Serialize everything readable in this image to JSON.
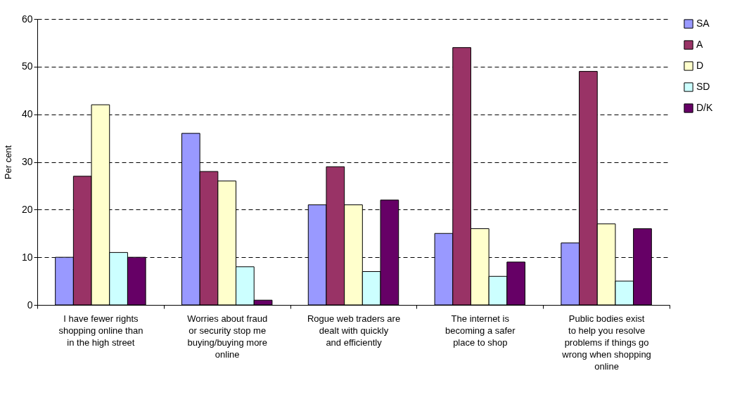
{
  "chart_data": {
    "type": "bar",
    "ylabel": "Per cent",
    "categories": [
      "I have fewer rights shopping online than in the high street",
      "Worries about fraud or security stop me buying/buying more online",
      "Rogue web traders are dealt with quickly and efficiently",
      "The internet is becoming a safer place to shop",
      "Public bodies exist to help you resolve problems if things go wrong when shopping online"
    ],
    "series": [
      {
        "name": "SA",
        "color": "#9999ff",
        "values": [
          10,
          36,
          21,
          15,
          13
        ]
      },
      {
        "name": "A",
        "color": "#993366",
        "values": [
          27,
          28,
          29,
          54,
          49
        ]
      },
      {
        "name": "D",
        "color": "#ffffcc",
        "values": [
          42,
          26,
          21,
          16,
          17
        ]
      },
      {
        "name": "SD",
        "color": "#ccffff",
        "values": [
          11,
          8,
          7,
          6,
          5
        ]
      },
      {
        "name": "D/K",
        "color": "#660066",
        "values": [
          10,
          1,
          22,
          9,
          16
        ]
      }
    ],
    "ylim": [
      0,
      60
    ],
    "yticks": [
      0,
      10,
      20,
      30,
      40,
      50,
      60
    ],
    "grid": "y",
    "legend": "right"
  }
}
